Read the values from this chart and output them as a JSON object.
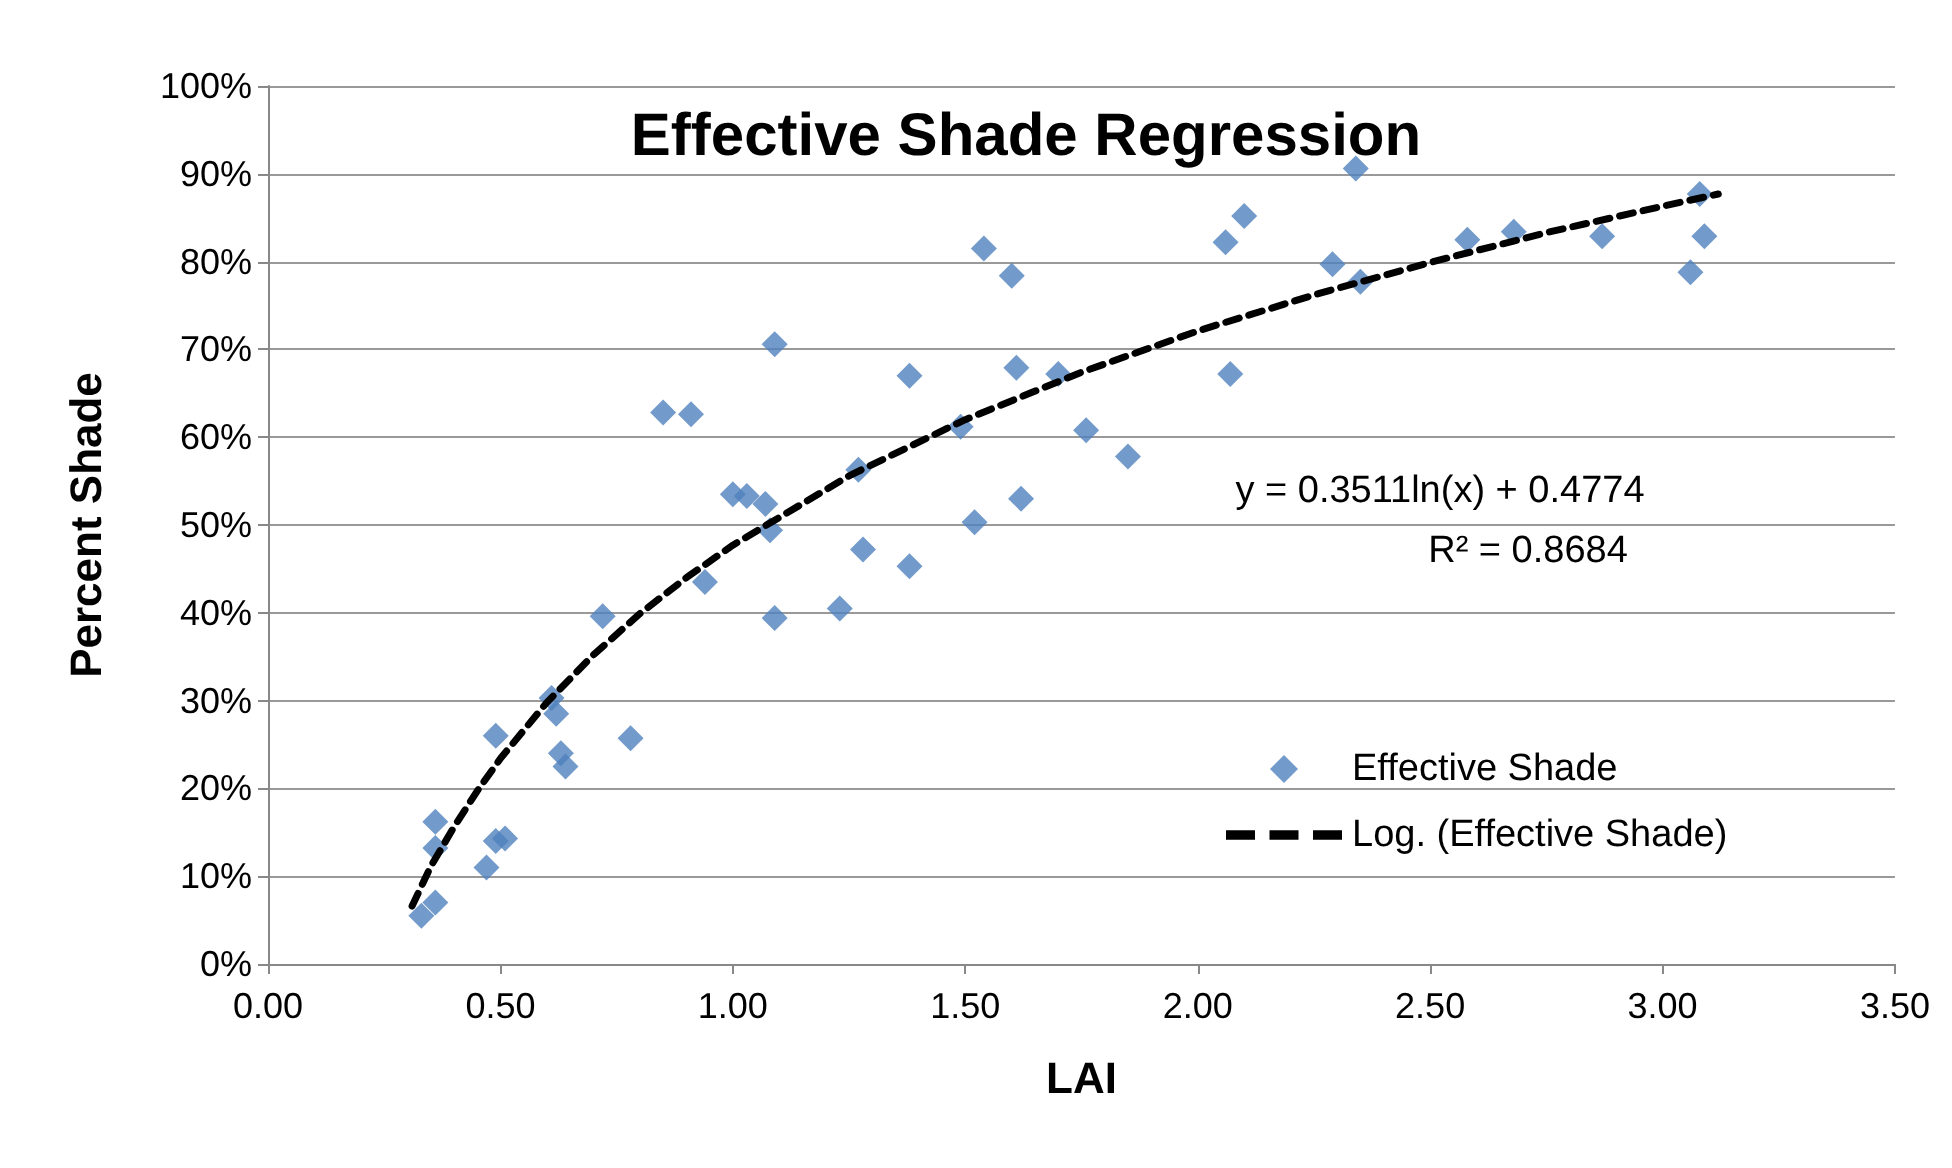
{
  "chart_data": {
    "type": "scatter",
    "title": "Effective Shade Regression",
    "xlabel": "LAI",
    "ylabel": "Percent Shade",
    "annotations": [
      "y = 0.3511ln(x) + 0.4774",
      "R² = 0.8684"
    ],
    "xlim": [
      0,
      3.5
    ],
    "xticks": [
      {
        "value": 0,
        "label": "0.00"
      },
      {
        "value": 0.5,
        "label": "0.50"
      },
      {
        "value": 1,
        "label": "1.00"
      },
      {
        "value": 1.5,
        "label": "1.50"
      },
      {
        "value": 2,
        "label": "2.00"
      },
      {
        "value": 2.5,
        "label": "2.50"
      },
      {
        "value": 3,
        "label": "3.00"
      },
      {
        "value": 3.5,
        "label": "3.50"
      }
    ],
    "ylim": [
      0,
      100
    ],
    "yticks": [
      {
        "value": 0,
        "label": "0%"
      },
      {
        "value": 10,
        "label": "10%"
      },
      {
        "value": 20,
        "label": "20%"
      },
      {
        "value": 30,
        "label": "30%"
      },
      {
        "value": 40,
        "label": "40%"
      },
      {
        "value": 50,
        "label": "50%"
      },
      {
        "value": 60,
        "label": "60%"
      },
      {
        "value": 70,
        "label": "70%"
      },
      {
        "value": 80,
        "label": "80%"
      },
      {
        "value": 90,
        "label": "90%"
      },
      {
        "value": 100,
        "label": "100%"
      }
    ],
    "grid": "y",
    "legend": "bottom right",
    "series": [
      {
        "name": "Effective Shade",
        "color": "#4f81bd",
        "marker": "diamond",
        "x": [
          0.33,
          0.36,
          0.36,
          0.36,
          0.47,
          0.49,
          0.51,
          0.49,
          0.61,
          0.62,
          0.63,
          0.64,
          0.78,
          0.72,
          0.85,
          0.91,
          0.94,
          1.0,
          1.03,
          1.07,
          1.08,
          1.09,
          1.09,
          1.23,
          1.27,
          1.28,
          1.38,
          1.38,
          1.49,
          1.52,
          1.54,
          1.6,
          1.61,
          1.62,
          1.7,
          1.76,
          1.85,
          2.06,
          2.07,
          2.1,
          2.29,
          2.34,
          2.35,
          2.58,
          2.68,
          2.87,
          3.06,
          3.08,
          3.09
        ],
        "values": [
          5.5,
          7,
          16.2,
          13.2,
          11,
          14,
          14.3,
          26,
          30.3,
          28.5,
          24,
          22.5,
          25.7,
          39.6,
          62.8,
          62.6,
          43.5,
          53.5,
          53.3,
          52.4,
          49.4,
          39.4,
          70.6,
          40.5,
          56.3,
          47.2,
          67,
          45.3,
          61.2,
          50.3,
          81.5,
          78.4,
          67.9,
          53,
          67.2,
          60.8,
          57.8,
          82.2,
          67.2,
          85.2,
          79.7,
          90.6,
          77.7,
          82.5,
          83.4,
          82.9,
          78.8,
          87.7,
          82.9
        ]
      },
      {
        "name": "Log. (Effective Shade)",
        "type": "line",
        "color": "#000000",
        "marker": "none",
        "line_style": "dashed",
        "x": [
          0.31,
          0.35,
          0.4,
          0.45,
          0.5,
          0.6,
          0.7,
          0.8,
          0.9,
          1.0,
          1.25,
          1.5,
          1.75,
          2.0,
          2.25,
          2.5,
          2.75,
          3.0,
          3.12
        ],
        "values": [
          6.6,
          11.1,
          15.6,
          19.7,
          23.4,
          29.8,
          35.2,
          39.9,
          44.0,
          47.7,
          55.6,
          62.0,
          67.4,
          72.1,
          76.2,
          79.9,
          83.3,
          86.3,
          87.7
        ]
      }
    ]
  }
}
